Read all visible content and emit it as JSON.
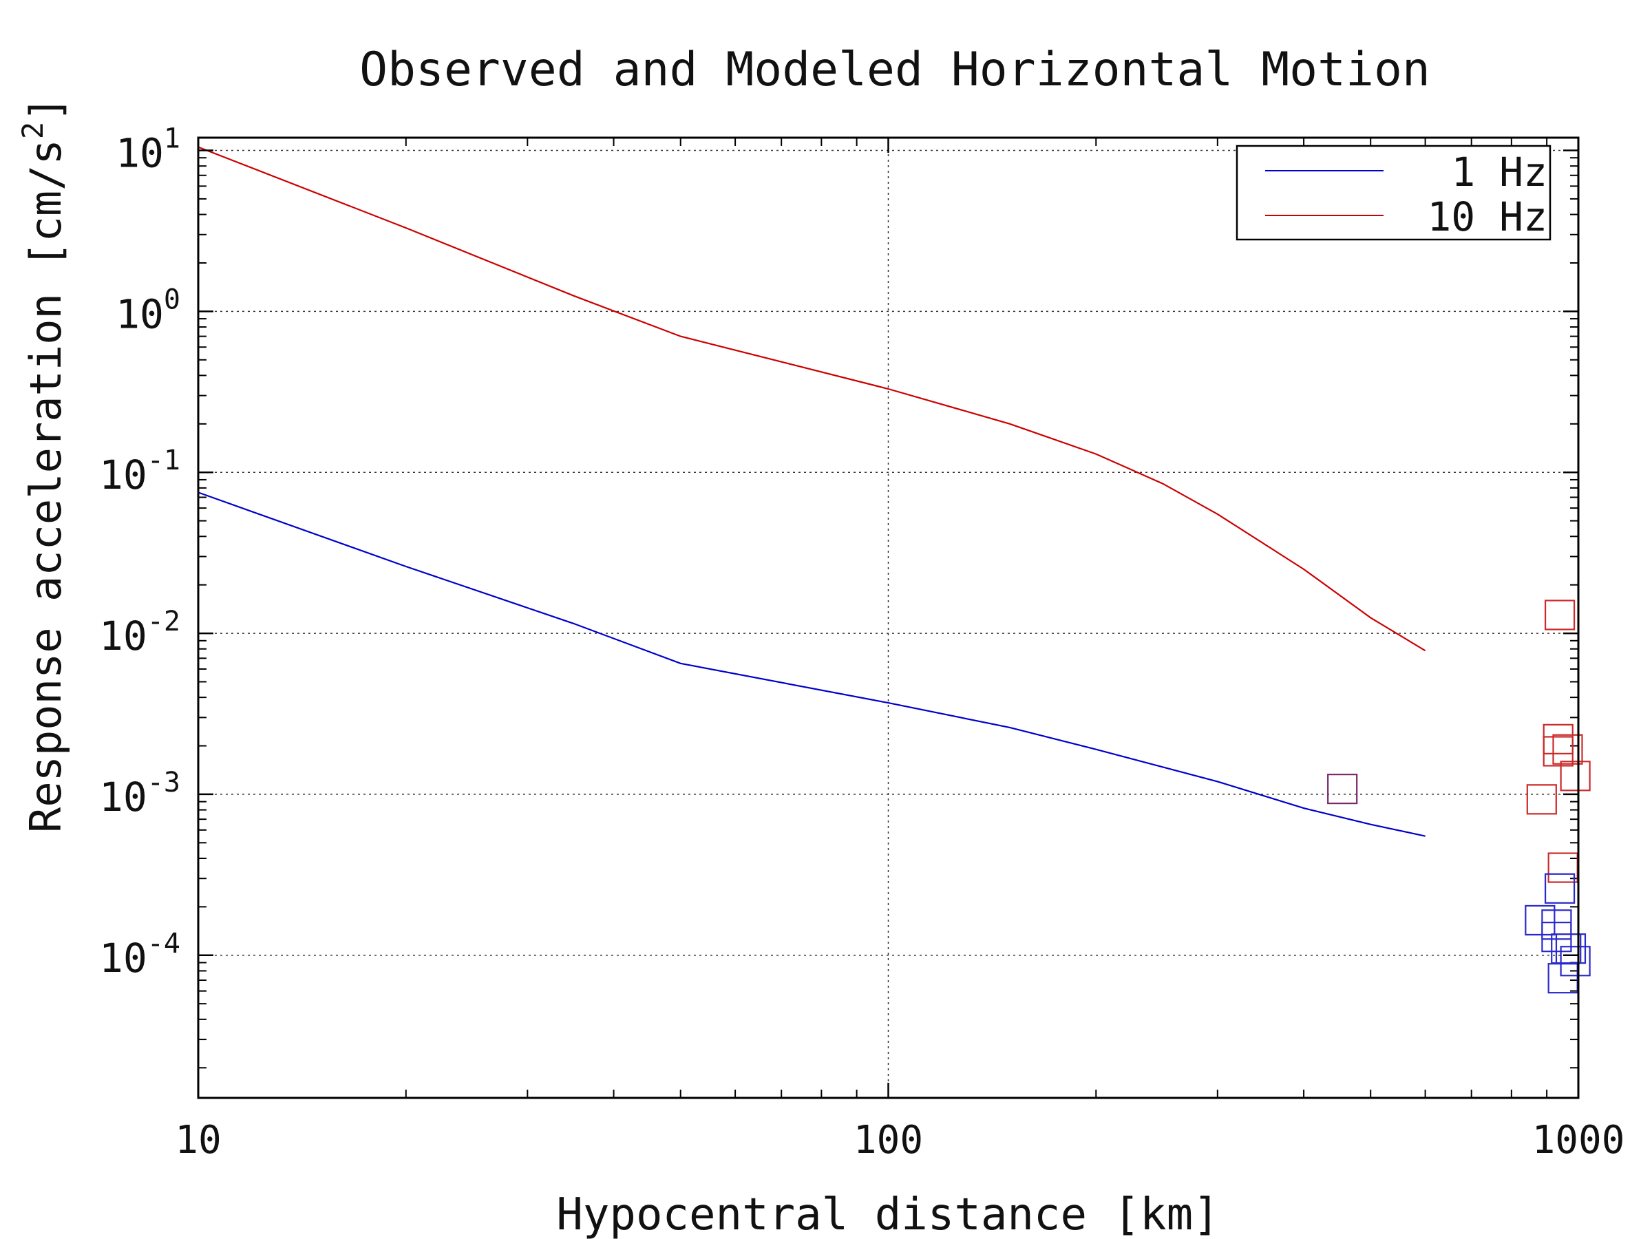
{
  "chart_data": {
    "type": "line",
    "title": "Observed and Modeled Horizontal Motion",
    "xlabel": "Hypocentral distance [km]",
    "ylabel": "Response acceleration [cm/s",
    "ylabel_sup": "2",
    "ylabel_close": "]",
    "x_scale": "log",
    "y_scale": "log",
    "xlim": [
      10,
      1000
    ],
    "ylim": [
      1.3e-05,
      12
    ],
    "x_ticks": [
      {
        "value": 10,
        "label": "10"
      },
      {
        "value": 100,
        "label": "100"
      },
      {
        "value": 1000,
        "label": "1000"
      }
    ],
    "y_ticks": [
      {
        "value": 10,
        "base": "10",
        "exp": "1"
      },
      {
        "value": 1,
        "base": "10",
        "exp": "0"
      },
      {
        "value": 0.1,
        "base": "10",
        "exp": "-1"
      },
      {
        "value": 0.01,
        "base": "10",
        "exp": "-2"
      },
      {
        "value": 0.001,
        "base": "10",
        "exp": "-3"
      },
      {
        "value": 0.0001,
        "base": "10",
        "exp": "-4"
      }
    ],
    "grid": true,
    "legend_position": "top-right",
    "series": [
      {
        "name": "1 Hz",
        "color": "#0000cc",
        "x": [
          10,
          20,
          35,
          50,
          100,
          150,
          200,
          300,
          400,
          500,
          600
        ],
        "y": [
          0.075,
          0.026,
          0.0115,
          0.0065,
          0.0037,
          0.0026,
          0.0019,
          0.0012,
          0.00082,
          0.00065,
          0.00055
        ]
      },
      {
        "name": "10 Hz",
        "color": "#cc0000",
        "x": [
          10,
          20,
          35,
          50,
          100,
          150,
          200,
          250,
          300,
          400,
          500,
          600
        ],
        "y": [
          10.5,
          3.3,
          1.25,
          0.7,
          0.33,
          0.2,
          0.13,
          0.085,
          0.055,
          0.025,
          0.0125,
          0.0078
        ]
      }
    ],
    "observed": [
      {
        "x": 455,
        "y": 0.00108,
        "color": "#7a2a6e"
      },
      {
        "x": 940,
        "y": 0.013,
        "color": "#cc2a2a"
      },
      {
        "x": 935,
        "y": 0.0022,
        "color": "#cc2a2a"
      },
      {
        "x": 935,
        "y": 0.00185,
        "color": "#cc2a2a"
      },
      {
        "x": 965,
        "y": 0.0019,
        "color": "#cc2a2a"
      },
      {
        "x": 990,
        "y": 0.0013,
        "color": "#cc2a2a"
      },
      {
        "x": 885,
        "y": 0.00093,
        "color": "#cc2a2a"
      },
      {
        "x": 950,
        "y": 0.00035,
        "color": "#cc2a2a"
      },
      {
        "x": 940,
        "y": 0.00026,
        "color": "#2a2acc"
      },
      {
        "x": 880,
        "y": 0.000165,
        "color": "#2a2acc"
      },
      {
        "x": 930,
        "y": 0.000155,
        "color": "#2a2acc"
      },
      {
        "x": 930,
        "y": 0.00013,
        "color": "#2a2acc"
      },
      {
        "x": 960,
        "y": 0.00011,
        "color": "#2a2acc"
      },
      {
        "x": 975,
        "y": 0.00011,
        "color": "#2a2acc"
      },
      {
        "x": 990,
        "y": 9.2e-05,
        "color": "#2a2acc"
      },
      {
        "x": 950,
        "y": 7.2e-05,
        "color": "#2a2acc"
      }
    ]
  }
}
